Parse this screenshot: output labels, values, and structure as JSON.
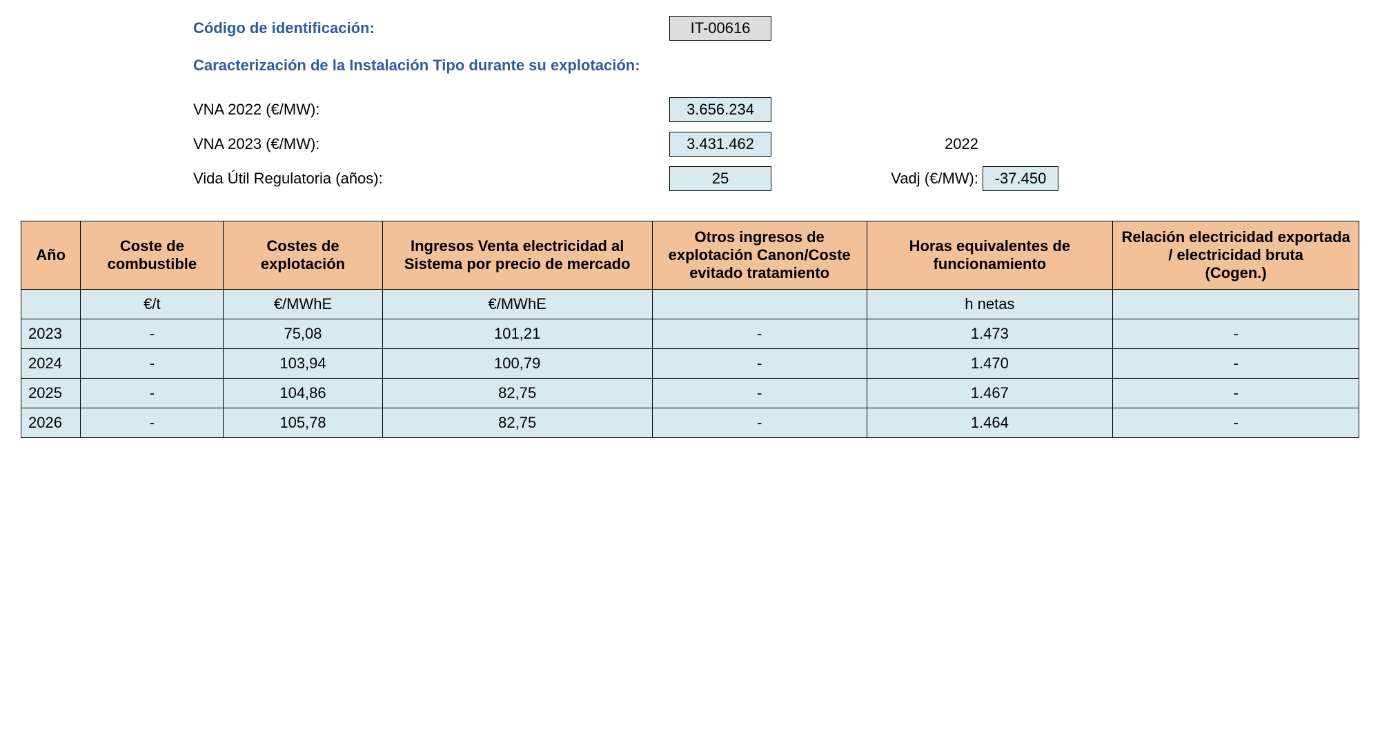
{
  "header": {
    "code_label": "Código de identificación:",
    "code_value": "IT-00616",
    "section_title": "Caracterización de la Instalación Tipo durante su explotación:",
    "vna2022_label": "VNA 2022 (€/MW):",
    "vna2022_value": "3.656.234",
    "vna2023_label": "VNA 2023 (€/MW):",
    "vna2023_value": "3.431.462",
    "year_header": "2022",
    "vida_label": "Vida Útil Regulatoria (años):",
    "vida_value": "25",
    "vadj_label": "Vadj (€/MW):",
    "vadj_value": "-37.450"
  },
  "table": {
    "headers": {
      "ano": "Año",
      "coste_combustible": "Coste de combustible",
      "costes_explotacion": "Costes de explotación",
      "ingresos_venta": "Ingresos Venta electricidad al Sistema por precio de mercado",
      "otros_ingresos": "Otros ingresos de explotación Canon/Coste evitado tratamiento",
      "horas": "Horas equivalentes de funcionamiento",
      "relacion": "Relación electricidad exportada / electricidad bruta\n(Cogen.)"
    },
    "units": {
      "ano": "",
      "coste_combustible": "€/t",
      "costes_explotacion": "€/MWhE",
      "ingresos_venta": "€/MWhE",
      "otros_ingresos": "",
      "horas": "h netas",
      "relacion": ""
    },
    "rows": [
      {
        "ano": "2023",
        "coste_combustible": "-",
        "costes_explotacion": "75,08",
        "ingresos_venta": "101,21",
        "otros_ingresos": "-",
        "horas": "1.473",
        "relacion": "-"
      },
      {
        "ano": "2024",
        "coste_combustible": "-",
        "costes_explotacion": "103,94",
        "ingresos_venta": "100,79",
        "otros_ingresos": "-",
        "horas": "1.470",
        "relacion": "-"
      },
      {
        "ano": "2025",
        "coste_combustible": "-",
        "costes_explotacion": "104,86",
        "ingresos_venta": "82,75",
        "otros_ingresos": "-",
        "horas": "1.467",
        "relacion": "-"
      },
      {
        "ano": "2026",
        "coste_combustible": "-",
        "costes_explotacion": "105,78",
        "ingresos_venta": "82,75",
        "otros_ingresos": "-",
        "horas": "1.464",
        "relacion": "-"
      }
    ]
  },
  "colors": {
    "header_bg": "#f2c099",
    "cell_bg": "#d9e9f0",
    "code_bg": "#dddddd",
    "label_blue": "#2e5c9e",
    "border": "#000000",
    "text": "#000000",
    "background": "#ffffff"
  }
}
